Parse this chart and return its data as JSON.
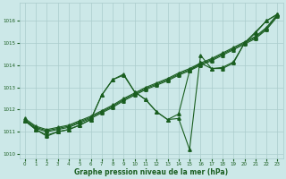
{
  "background_color": "#cce8e8",
  "grid_color": "#aacccc",
  "line_color": "#1a5e20",
  "xlabel": "Graphe pression niveau de la mer (hPa)",
  "xlim": [
    -0.5,
    23.5
  ],
  "ylim": [
    1009.8,
    1016.8
  ],
  "yticks": [
    1010,
    1011,
    1012,
    1013,
    1014,
    1015,
    1016
  ],
  "xticks": [
    0,
    1,
    2,
    3,
    4,
    5,
    6,
    7,
    8,
    9,
    10,
    11,
    12,
    13,
    14,
    15,
    16,
    17,
    18,
    19,
    20,
    21,
    22,
    23
  ],
  "series": [
    {
      "x": [
        0,
        1,
        2,
        3,
        4,
        5,
        6,
        7,
        8,
        9,
        10,
        11,
        12,
        13,
        14,
        15,
        16,
        17,
        18,
        19,
        20,
        21,
        22,
        23
      ],
      "y": [
        1011.5,
        1011.15,
        1011.0,
        1011.1,
        1011.2,
        1011.4,
        1011.6,
        1011.85,
        1012.1,
        1012.4,
        1012.65,
        1012.9,
        1013.1,
        1013.3,
        1013.55,
        1013.75,
        1014.0,
        1014.2,
        1014.45,
        1014.7,
        1014.95,
        1015.2,
        1015.6,
        1016.2
      ]
    },
    {
      "x": [
        0,
        1,
        2,
        3,
        4,
        5,
        6,
        7,
        8,
        9,
        10,
        11,
        12,
        13,
        14,
        15,
        16,
        17,
        18,
        19,
        20,
        21,
        22,
        23
      ],
      "y": [
        1011.55,
        1011.2,
        1011.05,
        1011.15,
        1011.25,
        1011.45,
        1011.65,
        1011.9,
        1012.15,
        1012.45,
        1012.7,
        1012.95,
        1013.15,
        1013.35,
        1013.6,
        1013.8,
        1014.05,
        1014.25,
        1014.5,
        1014.75,
        1015.0,
        1015.25,
        1015.65,
        1016.25
      ]
    },
    {
      "x": [
        0,
        1,
        2,
        3,
        4,
        5,
        6,
        7,
        8,
        9,
        10,
        11,
        12,
        13,
        14,
        15,
        16,
        17,
        18,
        19,
        20,
        21,
        22,
        23
      ],
      "y": [
        1011.6,
        1011.25,
        1011.1,
        1011.2,
        1011.3,
        1011.5,
        1011.7,
        1011.95,
        1012.2,
        1012.5,
        1012.75,
        1013.0,
        1013.2,
        1013.4,
        1013.65,
        1013.85,
        1014.1,
        1014.3,
        1014.55,
        1014.8,
        1015.05,
        1015.3,
        1015.7,
        1016.3
      ]
    },
    {
      "x": [
        0,
        1,
        2,
        3,
        4,
        5,
        6,
        7,
        8,
        9,
        10,
        11,
        12,
        13,
        14,
        15,
        16,
        17,
        18,
        19,
        20,
        21,
        22,
        23
      ],
      "y": [
        1011.5,
        1011.1,
        1010.8,
        1011.0,
        1011.1,
        1011.3,
        1011.55,
        1012.65,
        1013.35,
        1013.6,
        1012.8,
        1012.45,
        1011.9,
        1011.55,
        1011.6,
        1010.2,
        1014.45,
        1013.85,
        1013.85,
        1014.1,
        1015.0,
        1015.45,
        1016.0,
        1016.3
      ]
    },
    {
      "x": [
        0,
        1,
        2,
        3,
        4,
        5,
        6,
        7,
        8,
        9,
        10,
        11,
        12,
        13,
        14,
        15,
        16,
        17,
        18,
        19,
        20,
        21,
        22,
        23
      ],
      "y": [
        1011.5,
        1011.1,
        1010.85,
        1011.0,
        1011.1,
        1011.3,
        1011.55,
        1012.65,
        1013.35,
        1013.55,
        1012.8,
        1012.45,
        1011.9,
        1011.55,
        1011.8,
        1013.75,
        1014.1,
        1013.85,
        1013.9,
        1014.15,
        1015.0,
        1015.5,
        1016.0,
        1016.3
      ]
    }
  ]
}
